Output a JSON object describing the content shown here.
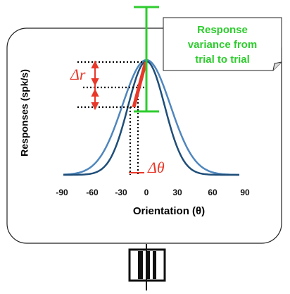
{
  "annotation": {
    "lines": [
      "Response",
      "variance from",
      "trial to trial"
    ]
  },
  "y_axis": {
    "label": "Responses (spk/s)"
  },
  "x_axis": {
    "label": "Orientation (θ)",
    "ticks": [
      "-90",
      "-60",
      "-30",
      "0",
      "30",
      "60",
      "90"
    ]
  },
  "delta_r": "Δr",
  "delta_theta": "Δθ"
}
